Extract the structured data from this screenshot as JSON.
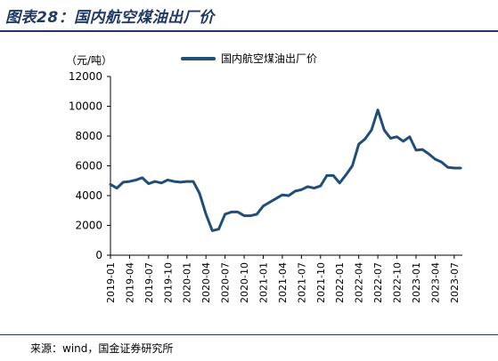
{
  "header": {
    "title": "图表28：国内航空煤油出厂价"
  },
  "footer": {
    "source": "来源：wind，国金证券研究所"
  },
  "chart_data": {
    "type": "line",
    "unit_label": "（元/吨）",
    "legend_position": "top",
    "grid": false,
    "line_color": "#1f4e79",
    "ylim": [
      0,
      12000
    ],
    "yticks": [
      0,
      2000,
      4000,
      6000,
      8000,
      10000,
      12000
    ],
    "ytick_labels": [
      "0",
      "2000",
      "4000",
      "6000",
      "8000",
      "10000",
      "12000"
    ],
    "xtick_labels": [
      "2019-01",
      "2019-04",
      "2019-07",
      "2019-10",
      "2020-01",
      "2020-04",
      "2020-07",
      "2020-10",
      "2021-01",
      "2021-04",
      "2021-07",
      "2021-10",
      "2022-01",
      "2022-04",
      "2022-07",
      "2022-10",
      "2023-01",
      "2023-04",
      "2023-07"
    ],
    "series": [
      {
        "name": "国内航空煤油出厂价",
        "x": [
          "2019-01",
          "2019-02",
          "2019-03",
          "2019-04",
          "2019-05",
          "2019-06",
          "2019-07",
          "2019-08",
          "2019-09",
          "2019-10",
          "2019-11",
          "2019-12",
          "2020-01",
          "2020-02",
          "2020-03",
          "2020-04",
          "2020-05",
          "2020-06",
          "2020-07",
          "2020-08",
          "2020-09",
          "2020-10",
          "2020-11",
          "2020-12",
          "2021-01",
          "2021-02",
          "2021-03",
          "2021-04",
          "2021-05",
          "2021-06",
          "2021-07",
          "2021-08",
          "2021-09",
          "2021-10",
          "2021-11",
          "2021-12",
          "2022-01",
          "2022-02",
          "2022-03",
          "2022-04",
          "2022-05",
          "2022-06",
          "2022-07",
          "2022-08",
          "2022-09",
          "2022-10",
          "2022-11",
          "2022-12",
          "2023-01",
          "2023-02",
          "2023-03",
          "2023-04",
          "2023-05",
          "2023-06",
          "2023-07",
          "2023-08"
        ],
        "values": [
          4750,
          4500,
          4900,
          4950,
          5050,
          5200,
          4800,
          4950,
          4850,
          5050,
          4950,
          4900,
          4950,
          4950,
          4150,
          2750,
          1650,
          1750,
          2750,
          2900,
          2900,
          2650,
          2650,
          2750,
          3300,
          3550,
          3800,
          4050,
          4000,
          4300,
          4400,
          4600,
          4500,
          4650,
          5350,
          5350,
          4850,
          5400,
          6000,
          7450,
          7800,
          8400,
          9750,
          8400,
          7850,
          7950,
          7650,
          7950,
          7050,
          7100,
          6800,
          6450,
          6250,
          5900,
          5850,
          5850
        ]
      }
    ]
  }
}
